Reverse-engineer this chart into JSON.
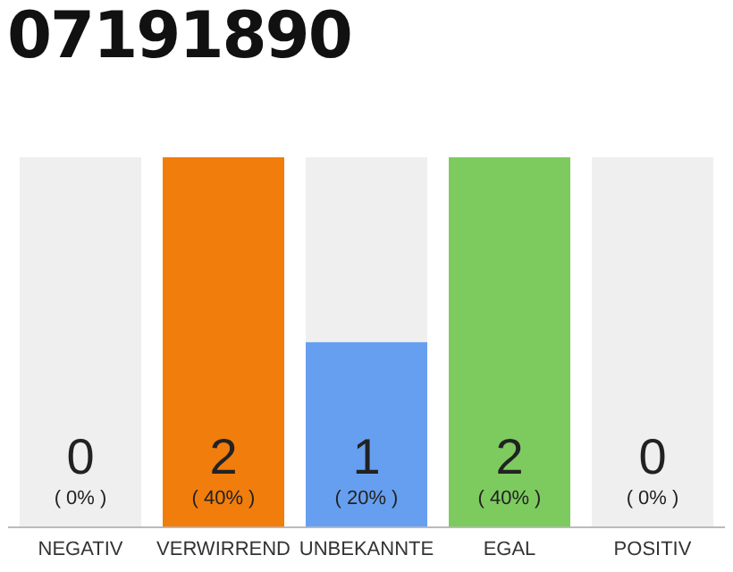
{
  "chart_data": {
    "type": "bar",
    "title": "07191890",
    "categories": [
      "NEGATIV",
      "VERWIRREND",
      "UNBEKANNTE",
      "EGAL",
      "POSITIV"
    ],
    "values": [
      0,
      2,
      1,
      2,
      0
    ],
    "colors": [
      "#efefef",
      "#f07d0c",
      "#679ff0",
      "#7dcb5f",
      "#efefef"
    ],
    "value_labels": [
      "0\n( 0% )",
      "2\n( 40% )",
      "1\n( 20% )",
      "2\n( 40% )",
      "0\n( 0% )"
    ],
    "grid": false,
    "legend": false,
    "tick_labels": "x"
  }
}
